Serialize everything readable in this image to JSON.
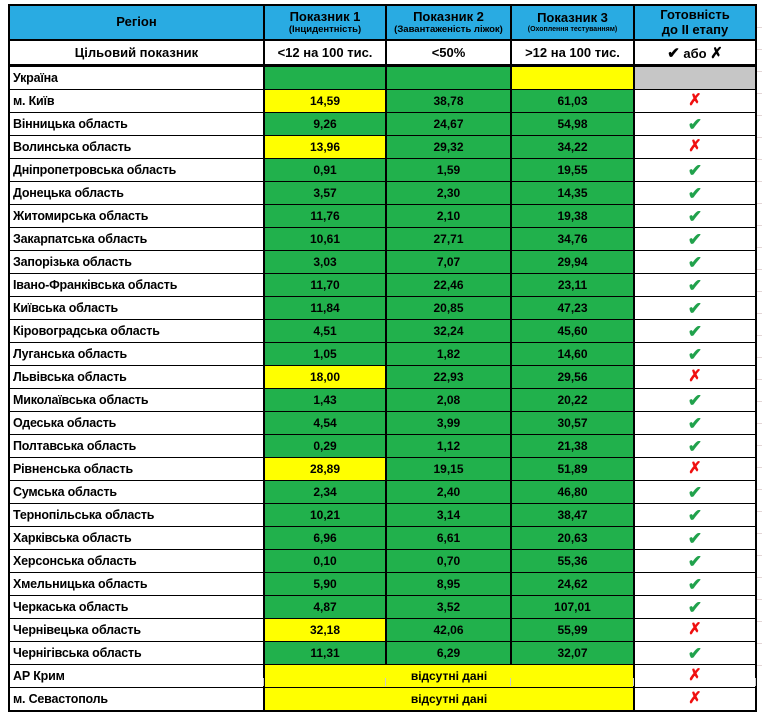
{
  "table": {
    "colors": {
      "header_bg": "#29ABE2",
      "green": "#21B14C",
      "yellow": "#FFFF00",
      "gray": "#C6C6C6",
      "check_green": "#21A24C",
      "cross_red": "#F01010"
    },
    "glyphs": {
      "check": "✔",
      "cross": "✗"
    },
    "header": {
      "region": "Регіон",
      "col1_title": "Показник 1",
      "col1_sub": "(Інцидентність)",
      "col2_title": "Показник 2",
      "col2_sub": "(Завантаженість ліжок)",
      "col3_title": "Показник 3",
      "col3_sub": "(Охоплення тестуванням)",
      "ready_line1": "Готовність",
      "ready_line2": "до ІІ етапу"
    },
    "target_row": {
      "label": "Цільовий показник",
      "col1": "<12 на 100 тис.",
      "col2": "<50%",
      "col3": ">12 на 100 тис.",
      "ready_check": "✔",
      "ready_or": "або",
      "ready_cross": "✗"
    },
    "rows": [
      {
        "region": "Україна",
        "v1": "",
        "c1": "green",
        "v2": "",
        "c2": "green",
        "v3": "",
        "c3": "yellow",
        "ready": "none",
        "ready_bg": "gray"
      },
      {
        "region": "м. Київ",
        "v1": "14,59",
        "c1": "yellow",
        "v2": "38,78",
        "c2": "green",
        "v3": "61,03",
        "c3": "green",
        "ready": "cross"
      },
      {
        "region": "Вінницька область",
        "v1": "9,26",
        "c1": "green",
        "v2": "24,67",
        "c2": "green",
        "v3": "54,98",
        "c3": "green",
        "ready": "check"
      },
      {
        "region": "Волинська область",
        "v1": "13,96",
        "c1": "yellow",
        "v2": "29,32",
        "c2": "green",
        "v3": "34,22",
        "c3": "green",
        "ready": "cross"
      },
      {
        "region": "Дніпропетровська область",
        "v1": "0,91",
        "c1": "green",
        "v2": "1,59",
        "c2": "green",
        "v3": "19,55",
        "c3": "green",
        "ready": "check"
      },
      {
        "region": "Донецька область",
        "v1": "3,57",
        "c1": "green",
        "v2": "2,30",
        "c2": "green",
        "v3": "14,35",
        "c3": "green",
        "ready": "check"
      },
      {
        "region": "Житомирська область",
        "v1": "11,76",
        "c1": "green",
        "v2": "2,10",
        "c2": "green",
        "v3": "19,38",
        "c3": "green",
        "ready": "check"
      },
      {
        "region": "Закарпатська область",
        "v1": "10,61",
        "c1": "green",
        "v2": "27,71",
        "c2": "green",
        "v3": "34,76",
        "c3": "green",
        "ready": "check"
      },
      {
        "region": "Запорізька область",
        "v1": "3,03",
        "c1": "green",
        "v2": "7,07",
        "c2": "green",
        "v3": "29,94",
        "c3": "green",
        "ready": "check"
      },
      {
        "region": "Івано-Франківська область",
        "v1": "11,70",
        "c1": "green",
        "v2": "22,46",
        "c2": "green",
        "v3": "23,11",
        "c3": "green",
        "ready": "check"
      },
      {
        "region": "Київська область",
        "v1": "11,84",
        "c1": "green",
        "v2": "20,85",
        "c2": "green",
        "v3": "47,23",
        "c3": "green",
        "ready": "check"
      },
      {
        "region": "Кіровоградська область",
        "v1": "4,51",
        "c1": "green",
        "v2": "32,24",
        "c2": "green",
        "v3": "45,60",
        "c3": "green",
        "ready": "check"
      },
      {
        "region": "Луганська область",
        "v1": "1,05",
        "c1": "green",
        "v2": "1,82",
        "c2": "green",
        "v3": "14,60",
        "c3": "green",
        "ready": "check"
      },
      {
        "region": "Львівська область",
        "v1": "18,00",
        "c1": "yellow",
        "v2": "22,93",
        "c2": "green",
        "v3": "29,56",
        "c3": "green",
        "ready": "cross"
      },
      {
        "region": "Миколаївська область",
        "v1": "1,43",
        "c1": "green",
        "v2": "2,08",
        "c2": "green",
        "v3": "20,22",
        "c3": "green",
        "ready": "check"
      },
      {
        "region": "Одеська область",
        "v1": "4,54",
        "c1": "green",
        "v2": "3,99",
        "c2": "green",
        "v3": "30,57",
        "c3": "green",
        "ready": "check"
      },
      {
        "region": "Полтавська область",
        "v1": "0,29",
        "c1": "green",
        "v2": "1,12",
        "c2": "green",
        "v3": "21,38",
        "c3": "green",
        "ready": "check"
      },
      {
        "region": "Рівненська область",
        "v1": "28,89",
        "c1": "yellow",
        "v2": "19,15",
        "c2": "green",
        "v3": "51,89",
        "c3": "green",
        "ready": "cross"
      },
      {
        "region": "Сумська область",
        "v1": "2,34",
        "c1": "green",
        "v2": "2,40",
        "c2": "green",
        "v3": "46,80",
        "c3": "green",
        "ready": "check"
      },
      {
        "region": "Тернопільська область",
        "v1": "10,21",
        "c1": "green",
        "v2": "3,14",
        "c2": "green",
        "v3": "38,47",
        "c3": "green",
        "ready": "check"
      },
      {
        "region": "Харківська область",
        "v1": "6,96",
        "c1": "green",
        "v2": "6,61",
        "c2": "green",
        "v3": "20,63",
        "c3": "green",
        "ready": "check"
      },
      {
        "region": "Херсонська область",
        "v1": "0,10",
        "c1": "green",
        "v2": "0,70",
        "c2": "green",
        "v3": "55,36",
        "c3": "green",
        "ready": "check"
      },
      {
        "region": "Хмельницька область",
        "v1": "5,90",
        "c1": "green",
        "v2": "8,95",
        "c2": "green",
        "v3": "24,62",
        "c3": "green",
        "ready": "check"
      },
      {
        "region": "Черкаська область",
        "v1": "4,87",
        "c1": "green",
        "v2": "3,52",
        "c2": "green",
        "v3": "107,01",
        "c3": "green",
        "ready": "check"
      },
      {
        "region": "Чернівецька область",
        "v1": "32,18",
        "c1": "yellow",
        "v2": "42,06",
        "c2": "green",
        "v3": "55,99",
        "c3": "green",
        "ready": "cross"
      },
      {
        "region": "Чернігівська область",
        "v1": "11,31",
        "c1": "green",
        "v2": "6,29",
        "c2": "green",
        "v3": "32,07",
        "c3": "green",
        "ready": "check"
      },
      {
        "region": "АР Крим",
        "merged": "відсутні дані",
        "ready": "cross"
      },
      {
        "region": "м. Севастополь",
        "merged": "відсутні дані",
        "ready": "cross"
      }
    ]
  }
}
